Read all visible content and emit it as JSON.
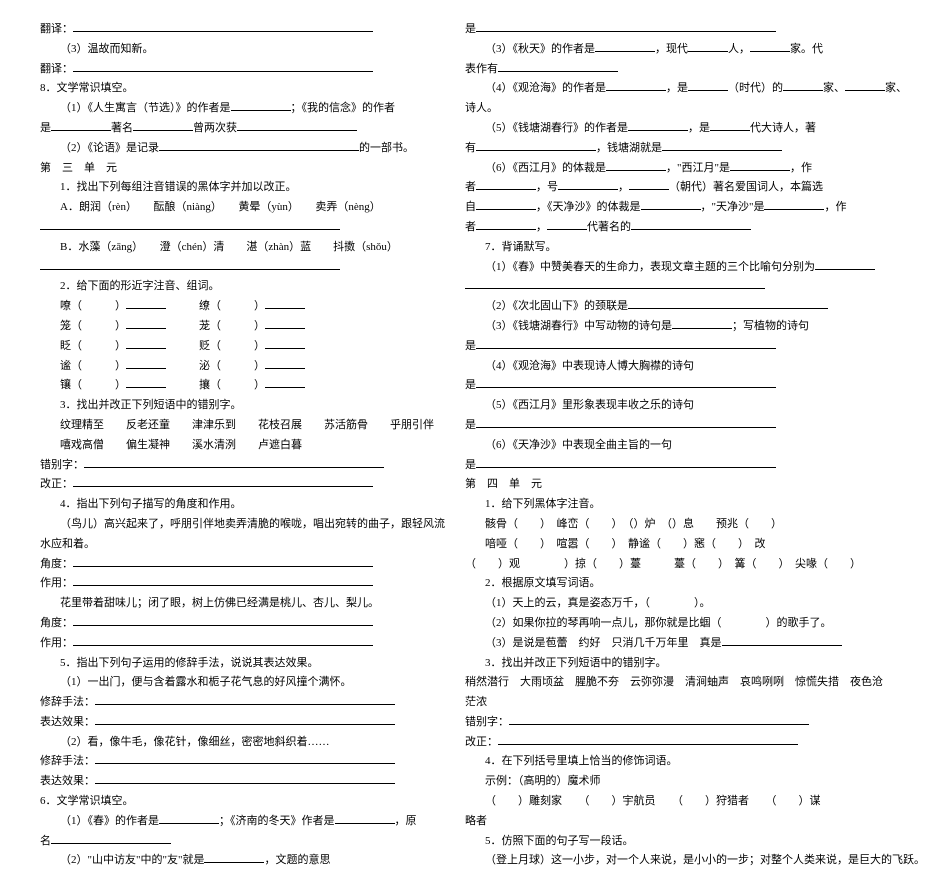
{
  "left": {
    "l1": "翻译：",
    "l2": "（3）温故而知新。",
    "l3": "翻译：",
    "l4": "8．文学常识填空。",
    "l5a": "（1）《人生寓言（节选）》的作者是",
    "l5b": "；《我的信念》的作者",
    "l6a": "是",
    "l6b": "著名",
    "l6c": "曾两次获",
    "l7a": "（2）《论语》是记录",
    "l7b": "的一部书。",
    "l8": "第　三　单　元",
    "l9": "1．找出下列每组注音错误的黑体字并加以改正。",
    "l10": "A．朗润（rèn）　　酝酿（niàng）　　黄晕（yùn）　　卖弄（nèng）",
    "l11": "",
    "l12": "B．水藻（zāng）　　澄（chén）清　　湛（zhàn）蓝　　抖擞（shǒu）",
    "l13": "",
    "l14": "2．给下面的形近字注音、组词。",
    "l15a": "嘹",
    "l15b": "缭",
    "l16a": "笼",
    "l16b": "茏",
    "l17a": "眨",
    "l17b": "贬",
    "l18a": "谧",
    "l18b": "泌",
    "l19a": "镶",
    "l19b": "攘",
    "l20": "3．找出并改正下列短语中的错别字。",
    "l21": "纹理精至　　反老还童　　津津乐到　　花枝召展　　苏活筋骨　　乎朋引伴",
    "l22": "嘻戏高僧　　偏生凝神　　溪水清洌　　卢遮白暮",
    "l23": "错别字：",
    "l24": "改正：",
    "l25": "4．指出下列句子描写的角度和作用。",
    "l26": "（鸟儿）高兴起来了，呼朋引伴地卖弄清脆的喉咙，唱出宛转的曲子，跟轻风流",
    "l27": "水应和着。",
    "l28": "角度：",
    "l29": "作用：",
    "l30": "花里带着甜味儿；闭了眼，树上仿佛已经满是桃儿、杏儿、梨儿。",
    "l31": "角度：",
    "l32": "作用：",
    "l33": "5．指出下列句子运用的修辞手法，说说其表达效果。",
    "l34": "（1）一出门，便与含着露水和栀子花气息的好风撞个满怀。",
    "l35": "修辞手法：",
    "l36": "表达效果：",
    "l37": "（2）看，像牛毛，像花针，像细丝，密密地斜织着……",
    "l38": "修辞手法：",
    "l39": "表达效果：",
    "l40": "6．文学常识填空。",
    "l41a": "（1）《春》的作者是",
    "l41b": "；《济南的冬天》作者是",
    "l41c": "，原",
    "l42": "名",
    "l43a": "（2）\"山中访友\"中的\"友\"就是",
    "l43b": "，文题的意思",
    "l43c": "。"
  },
  "right": {
    "r1": "是",
    "r2a": "（3）《秋天》的作者是",
    "r2b": "，现代",
    "r2c": "人，",
    "r2d": "家。代",
    "r3": "表作有",
    "r4a": "（4）《观沧海》的作者是",
    "r4b": "，是",
    "r4c": "（时代）的",
    "r4d": "家、",
    "r4e": "家、",
    "r5": "诗人。",
    "r6a": "（5）《钱塘湖春行》的作者是",
    "r6b": "，是",
    "r6c": "代大诗人，著",
    "r7a": "有",
    "r7b": "，钱塘湖就是",
    "r8a": "（6）《西江月》的体裁是",
    "r8b": "，\"西江月\"是",
    "r8c": "，作",
    "r9a": "者",
    "r9b": "，号",
    "r9c": "（朝代）著名爱国词人，本篇选",
    "r10a": "自",
    "r10b": "，《天净沙》的体裁是",
    "r10c": "，\"天净沙\"是",
    "r10d": "，作",
    "r11a": "者",
    "r11b": "代著名的",
    "r12": "7．背诵默写。",
    "r13a": "（1）《春》中赞美春天的生命力，表现文章主题的三个比喻句分别为",
    "r14": "",
    "r15": "（2）《次北固山下》的颈联是",
    "r16a": "（3）《钱塘湖春行》中写动物的诗句是",
    "r16b": "；写植物的诗句",
    "r17": "是",
    "r18": "（4）《观沧海》中表现诗人博大胸襟的诗句",
    "r19": "是",
    "r20": "（5）《西江月》里形象表现丰收之乐的诗句",
    "r21": "是",
    "r22": "（6）《天净沙》中表现全曲主旨的一句",
    "r23": "是",
    "r24": "第　四　单　元",
    "r25": "1．给下列黑体字注音。",
    "r26a": "骸骨",
    "r26b": "峰峦",
    "r26c": "）炉",
    "r26d": "）息　　预兆",
    "r27a": "喑哑",
    "r27b": "喧嚣",
    "r27c": "静谧",
    "r27d": "）窸",
    "r27e": "）　改",
    "r28a": "）观　　　　）掠",
    "r28b": "）薹　　　薹",
    "r28c": "篝",
    "r28d": "尖喙",
    "r29": "2．根据原文填写词语。",
    "r30a": "（1）天上的云，真是姿态万千，（",
    "r30b": "）。",
    "r31a": "（2）如果你拉的琴再响一点儿，那你就是比蝈（",
    "r31b": "）的歌手了。",
    "r32a": "（3）是说是苞蕾　约好　只消几千万年里　真是",
    "r33": "3．找出并改正下列短语中的错别字。",
    "r34": "稍然潜行　大雨顷盆　腥脆不夯　云弥弥漫　清涧蚰声　哀鸣咧咧　惊慌失措　夜色沧",
    "r35": "茫浓",
    "r36": "错别字：",
    "r37": "改正：",
    "r38": "4．在下列括号里填上恰当的修饰词语。",
    "r39": "示例：（高明的）魔术师",
    "r40a": "（",
    "r40b": "）雕刻家　　（",
    "r40c": "）宇航员　　（",
    "r40d": "）狩猎者　　（",
    "r40e": "）谋",
    "r41": "略者",
    "r42": "5．仿照下面的句子写一段话。",
    "r43": "（登上月球）这一小步，对一个人来说，是小小的一步；对整个人类来说，是巨大的飞跃。"
  }
}
